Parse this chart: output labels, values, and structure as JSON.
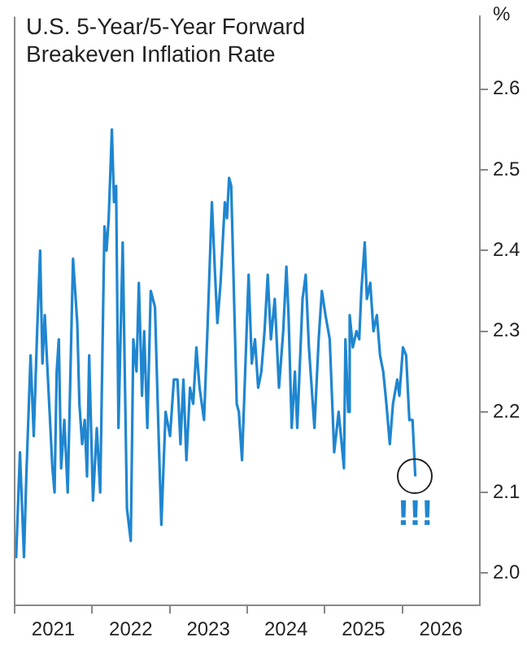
{
  "chart_data": {
    "type": "line",
    "title": "U.S. 5-Year/5-Year Forward Breakeven Inflation Rate",
    "ylabel": "%",
    "x": [
      "2021-01-01",
      "2021-01-08",
      "2021-01-26",
      "2021-02-14",
      "2021-02-25",
      "2021-03-17",
      "2021-04-01",
      "2021-04-17",
      "2021-05-01",
      "2021-05-12",
      "2021-05-23",
      "2021-06-07",
      "2021-06-28",
      "2021-07-08",
      "2021-07-18",
      "2021-07-28",
      "2021-08-08",
      "2021-08-23",
      "2021-09-08",
      "2021-10-03",
      "2021-10-23",
      "2021-11-02",
      "2021-11-15",
      "2021-11-27",
      "2021-12-08",
      "2021-12-18",
      "2022-01-05",
      "2022-01-23",
      "2022-02-08",
      "2022-02-28",
      "2022-03-10",
      "2022-03-20",
      "2022-04-04",
      "2022-04-14",
      "2022-04-24",
      "2022-05-05",
      "2022-05-25",
      "2022-06-14",
      "2022-07-02",
      "2022-07-14",
      "2022-07-29",
      "2022-08-09",
      "2022-08-24",
      "2022-09-03",
      "2022-09-18",
      "2022-10-04",
      "2022-10-24",
      "2022-11-08",
      "2022-11-23",
      "2022-12-13",
      "2023-01-03",
      "2023-01-21",
      "2023-02-07",
      "2023-02-21",
      "2023-03-07",
      "2023-03-21",
      "2023-04-07",
      "2023-04-22",
      "2023-05-07",
      "2023-05-22",
      "2023-06-12",
      "2023-06-28",
      "2023-07-19",
      "2023-08-03",
      "2023-08-14",
      "2023-08-29",
      "2023-09-18",
      "2023-09-28",
      "2023-10-08",
      "2023-10-18",
      "2023-11-13",
      "2023-11-23",
      "2023-12-08",
      "2024-01-08",
      "2024-01-23",
      "2024-02-07",
      "2024-02-22",
      "2024-03-08",
      "2024-03-23",
      "2024-04-07",
      "2024-04-22",
      "2024-05-10",
      "2024-05-30",
      "2024-06-19",
      "2024-07-04",
      "2024-07-14",
      "2024-07-29",
      "2024-08-13",
      "2024-08-24",
      "2024-09-18",
      "2024-10-03",
      "2024-10-18",
      "2024-11-13",
      "2024-12-03",
      "2024-12-18",
      "2025-01-04",
      "2025-01-24",
      "2025-02-14",
      "2025-03-07",
      "2025-03-25",
      "2025-04-01",
      "2025-04-08",
      "2025-04-21",
      "2025-04-28",
      "2025-05-13",
      "2025-05-30",
      "2025-06-12",
      "2025-06-22",
      "2025-07-08",
      "2025-07-18",
      "2025-08-03",
      "2025-08-18",
      "2025-09-03",
      "2025-09-18",
      "2025-10-03",
      "2025-10-18",
      "2025-11-03",
      "2025-11-18",
      "2025-12-08",
      "2025-12-18",
      "2026-01-04",
      "2026-01-19",
      "2026-02-03",
      "2026-02-18",
      "2026-03-03"
    ],
    "series": [
      {
        "color": "#1f86d0",
        "values": [
          2.04,
          2.02,
          2.15,
          2.02,
          2.12,
          2.27,
          2.17,
          2.3,
          2.4,
          2.26,
          2.32,
          2.24,
          2.13,
          2.1,
          2.25,
          2.29,
          2.13,
          2.19,
          2.1,
          2.39,
          2.31,
          2.21,
          2.16,
          2.19,
          2.12,
          2.27,
          2.09,
          2.18,
          2.1,
          2.43,
          2.4,
          2.44,
          2.55,
          2.46,
          2.48,
          2.18,
          2.41,
          2.08,
          2.04,
          2.29,
          2.25,
          2.36,
          2.22,
          2.3,
          2.18,
          2.35,
          2.33,
          2.19,
          2.06,
          2.2,
          2.17,
          2.24,
          2.24,
          2.16,
          2.24,
          2.14,
          2.23,
          2.21,
          2.28,
          2.23,
          2.19,
          2.3,
          2.46,
          2.37,
          2.31,
          2.36,
          2.46,
          2.44,
          2.49,
          2.48,
          2.21,
          2.2,
          2.14,
          2.37,
          2.26,
          2.29,
          2.23,
          2.25,
          2.3,
          2.37,
          2.29,
          2.34,
          2.23,
          2.3,
          2.38,
          2.32,
          2.18,
          2.25,
          2.18,
          2.34,
          2.37,
          2.28,
          2.18,
          2.29,
          2.35,
          2.32,
          2.29,
          2.15,
          2.2,
          2.15,
          2.13,
          2.29,
          2.2,
          2.32,
          2.28,
          2.3,
          2.29,
          2.35,
          2.41,
          2.34,
          2.36,
          2.3,
          2.32,
          2.27,
          2.25,
          2.21,
          2.16,
          2.21,
          2.24,
          2.22,
          2.28,
          2.27,
          2.19,
          2.19,
          2.12
        ]
      }
    ],
    "xlim": [
      "2021-01-01",
      "2027-01-01"
    ],
    "xticks": [
      {
        "value": "2021-01-01",
        "label": null
      },
      {
        "value": "2021-07-02",
        "label": "2021"
      },
      {
        "value": "2022-01-01",
        "label": null
      },
      {
        "value": "2022-07-02",
        "label": "2022"
      },
      {
        "value": "2023-01-01",
        "label": null
      },
      {
        "value": "2023-07-02",
        "label": "2023"
      },
      {
        "value": "2024-01-01",
        "label": null
      },
      {
        "value": "2024-07-02",
        "label": "2024"
      },
      {
        "value": "2025-01-01",
        "label": null
      },
      {
        "value": "2025-07-02",
        "label": "2025"
      },
      {
        "value": "2026-01-01",
        "label": null
      },
      {
        "value": "2026-07-02",
        "label": "2026"
      }
    ],
    "ylim": [
      1.96,
      2.69
    ],
    "yticks": [
      {
        "value": 2,
        "label": "2.0"
      },
      2.1,
      2.2,
      2.3,
      2.4,
      2.5,
      2.6
    ],
    "annotations": [
      "!!!"
    ],
    "grid": false,
    "legend": false,
    "marker": "none",
    "line_style": "solid"
  }
}
